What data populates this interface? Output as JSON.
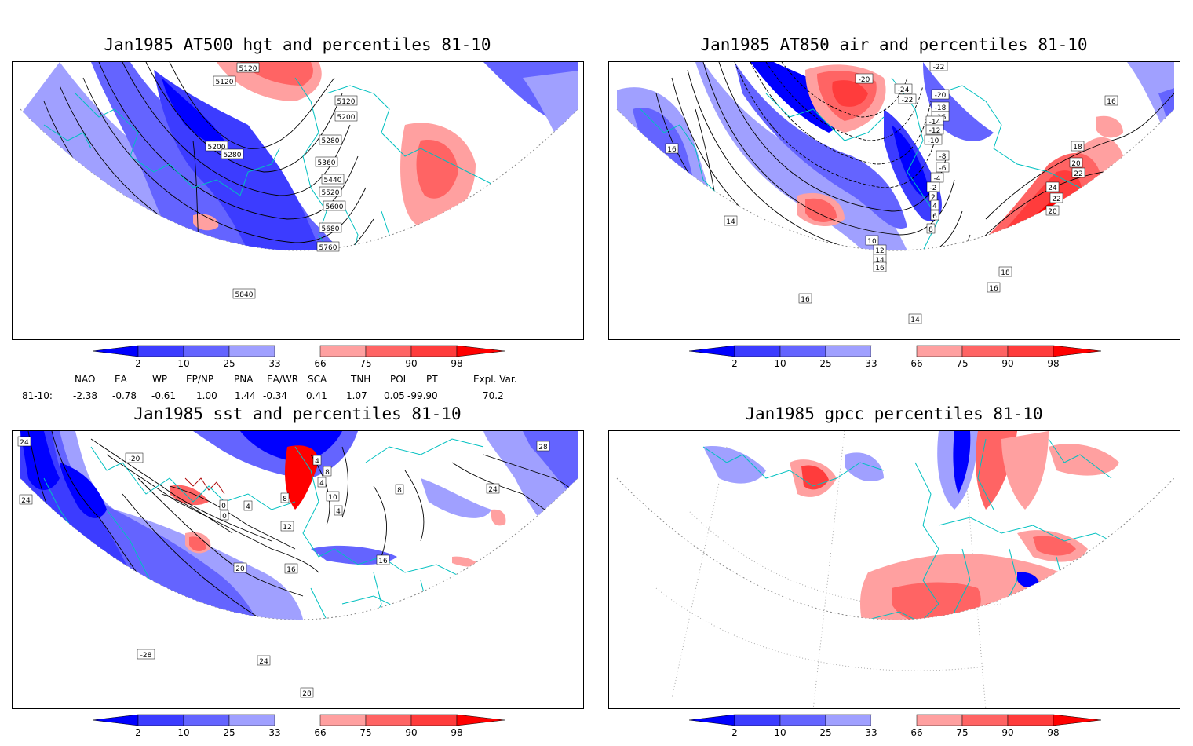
{
  "panels": [
    {
      "title": "Jan1985 AT500 hgt and percentiles 81-10",
      "contour_labels": [
        "5120",
        "5120",
        "5120",
        "5200",
        "5200",
        "5280",
        "5280",
        "5360",
        "5440",
        "5520",
        "5600",
        "5680",
        "5760",
        "5840"
      ]
    },
    {
      "title": "Jan1985 AT850 air and percentiles 81-10",
      "contour_labels": [
        "-22",
        "-20",
        "-24",
        "-22",
        "-20",
        "-18",
        "-16",
        "-14",
        "-12",
        "-10",
        "-8",
        "-6",
        "-4",
        "-2",
        "2",
        "4",
        "6",
        "8",
        "10",
        "12",
        "14",
        "16",
        "16",
        "14",
        "16",
        "18",
        "20",
        "22",
        "24",
        "22",
        "20",
        "18",
        "16",
        "14",
        "16"
      ]
    },
    {
      "title": "Jan1985 sst and percentiles 81-10",
      "contour_labels": [
        "-20",
        "24",
        "24",
        "0",
        "4",
        "8",
        "0",
        "4",
        "10",
        "4",
        "8",
        "12",
        "16",
        "16",
        "20",
        "-28",
        "24",
        "28",
        "28",
        "24",
        "4",
        "8"
      ]
    },
    {
      "title": "Jan1985 gpcc percentiles 81-10",
      "contour_labels": []
    }
  ],
  "colorbar": {
    "ticks": [
      "2",
      "10",
      "25",
      "33",
      "66",
      "75",
      "90",
      "98"
    ],
    "colors": [
      "#0000ff",
      "#3c3cff",
      "#6464ff",
      "#a0a0ff",
      "#ffffff",
      "#ffa0a0",
      "#ff6464",
      "#ff3c3c",
      "#ff0000"
    ]
  },
  "indices": {
    "headers": [
      "NAO",
      "EA",
      "WP",
      "EP/NP",
      "PNA",
      "EA/WR",
      "SCA",
      "TNH",
      "POL",
      "PT",
      "Expl. Var."
    ],
    "row_label": "81-10:",
    "values": [
      "-2.38",
      "-0.78",
      "-0.61",
      "1.00",
      "1.44",
      "-0.34",
      "0.41",
      "1.07",
      "0.05",
      "-99.90",
      "70.2"
    ]
  }
}
